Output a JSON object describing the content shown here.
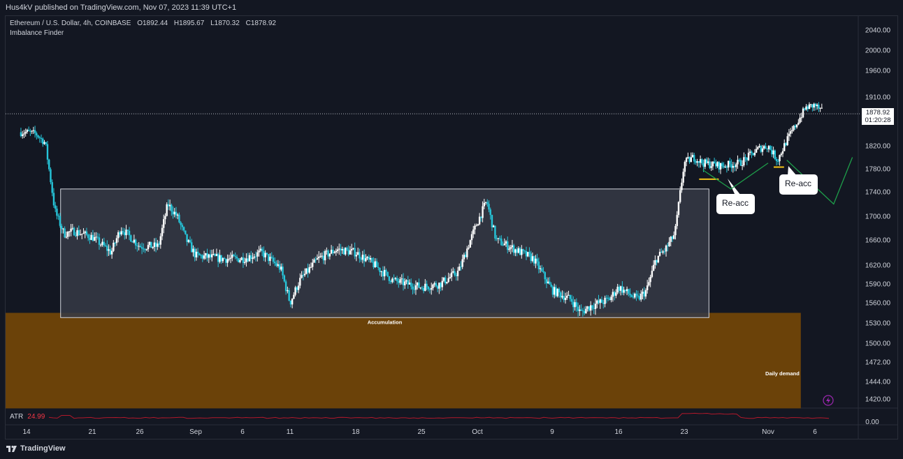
{
  "publisher_line": "Hus4kV published on TradingView.com, Nov 07, 2023 11:39 UTC+1",
  "header": {
    "symbol": "Ethereum / U.S. Dollar, 4h, COINBASE",
    "open_label": "O",
    "open": "1892.44",
    "high_label": "H",
    "high": "1895.67",
    "low_label": "L",
    "low": "1870.32",
    "close_label": "C",
    "close": "1878.92",
    "indicator": "Imbalance Finder"
  },
  "last_price": {
    "price": "1878.92",
    "countdown": "01:20:28"
  },
  "annotations": {
    "accumulation": "Accumulation",
    "daily_demand": "Daily demand",
    "reacc_1": "Re-acc",
    "reacc_2": "Re-acc"
  },
  "atr": {
    "label": "ATR",
    "value": "24.99",
    "scale_label": "0.00"
  },
  "branding": {
    "logo_text": "TradingView"
  },
  "colors": {
    "background": "#131722",
    "up": "#ffffff",
    "down": "#26c6da",
    "demand_zone": "#6b4209",
    "accumulation_box": "#363a45",
    "projection": "#1e9e4a",
    "reacc_marker": "#f5c518",
    "atr_line": "#b2182b",
    "bolt": "#9c27b0"
  },
  "chart_data": {
    "type": "candlestick",
    "symbol": "ETH/USD",
    "timeframe": "4h",
    "y_axis": {
      "ticks": [
        "2040.00",
        "2000.00",
        "1960.00",
        "1910.00",
        "1820.00",
        "1780.00",
        "1740.00",
        "1700.00",
        "1660.00",
        "1620.00",
        "1590.00",
        "1560.00",
        "1530.00",
        "1500.00",
        "1472.00",
        "1444.00",
        "1420.00"
      ],
      "range": [
        1410,
        2055
      ]
    },
    "x_axis": {
      "ticks": [
        "14",
        "21",
        "26",
        "Sep",
        "6",
        "11",
        "18",
        "25",
        "Oct",
        "9",
        "16",
        "23",
        "Nov",
        "6"
      ]
    },
    "price_anchors": [
      [
        "Aug 14",
        1845
      ],
      [
        "Aug 15",
        1842
      ],
      [
        "Aug 16",
        1825
      ],
      [
        "Aug 17",
        1710
      ],
      [
        "Aug 18",
        1670
      ],
      [
        "Aug 19",
        1675
      ],
      [
        "Aug 21",
        1665
      ],
      [
        "Aug 23",
        1640
      ],
      [
        "Aug 24",
        1680
      ],
      [
        "Aug 26",
        1650
      ],
      [
        "Aug 28",
        1650
      ],
      [
        "Aug 29",
        1720
      ],
      [
        "Aug 30",
        1700
      ],
      [
        "Aug 31",
        1660
      ],
      [
        "Sep 1",
        1635
      ],
      [
        "Sep 4",
        1630
      ],
      [
        "Sep 6",
        1630
      ],
      [
        "Sep 8",
        1640
      ],
      [
        "Sep 10",
        1615
      ],
      [
        "Sep 11",
        1560
      ],
      [
        "Sep 12",
        1595
      ],
      [
        "Sep 14",
        1630
      ],
      [
        "Sep 16",
        1645
      ],
      [
        "Sep 18",
        1640
      ],
      [
        "Sep 20",
        1620
      ],
      [
        "Sep 22",
        1595
      ],
      [
        "Sep 25",
        1585
      ],
      [
        "Sep 27",
        1590
      ],
      [
        "Sep 29",
        1610
      ],
      [
        "Oct 1",
        1690
      ],
      [
        "Oct 2",
        1725
      ],
      [
        "Oct 3",
        1660
      ],
      [
        "Oct 5",
        1645
      ],
      [
        "Oct 7",
        1630
      ],
      [
        "Oct 9",
        1580
      ],
      [
        "Oct 11",
        1565
      ],
      [
        "Oct 12",
        1545
      ],
      [
        "Oct 13",
        1555
      ],
      [
        "Oct 15",
        1565
      ],
      [
        "Oct 16",
        1585
      ],
      [
        "Oct 17",
        1575
      ],
      [
        "Oct 18",
        1565
      ],
      [
        "Oct 19",
        1580
      ],
      [
        "Oct 20",
        1630
      ],
      [
        "Oct 21",
        1645
      ],
      [
        "Oct 22",
        1670
      ],
      [
        "Oct 23",
        1790
      ],
      [
        "Oct 24",
        1800
      ],
      [
        "Oct 25",
        1790
      ],
      [
        "Oct 27",
        1785
      ],
      [
        "Oct 29",
        1790
      ],
      [
        "Oct 31",
        1815
      ],
      [
        "Nov 1",
        1820
      ],
      [
        "Nov 2",
        1795
      ],
      [
        "Nov 3",
        1830
      ],
      [
        "Nov 5",
        1890
      ],
      [
        "Nov 6",
        1895
      ],
      [
        "Nov 7",
        1879
      ]
    ],
    "accumulation_box": {
      "start": "Aug 18",
      "end": "Oct 24",
      "low": 1538,
      "high": 1745
    },
    "daily_demand_zone": {
      "start": "Aug 14",
      "end": "Nov 3",
      "low": 1410,
      "high": 1545
    },
    "reacc_levels": [
      {
        "start": "Oct 24",
        "end": "Oct 27",
        "price": 1762
      },
      {
        "start": "Nov 1",
        "end": "Nov 3",
        "price": 1783
      }
    ],
    "projection_paths": [
      [
        [
          "Oct 25",
          1778
        ],
        [
          "Oct 28",
          1745
        ],
        [
          "Nov 1",
          1790
        ]
      ],
      [
        [
          "Nov 3",
          1795
        ],
        [
          "Nov 8",
          1720
        ],
        [
          "Nov 10",
          1800
        ]
      ]
    ],
    "atr": {
      "value": 24.99
    }
  }
}
